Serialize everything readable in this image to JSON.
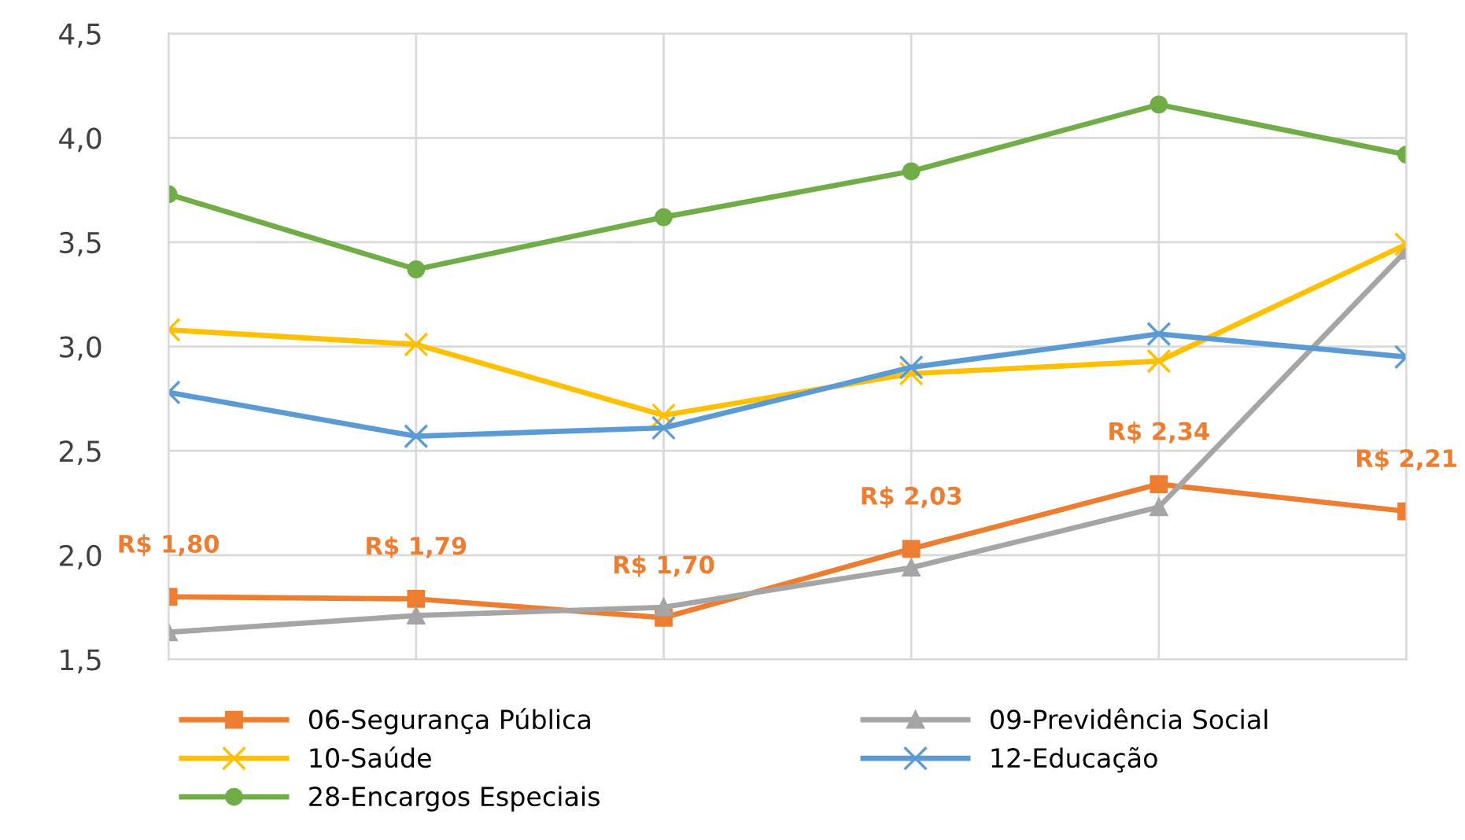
{
  "chart_data": {
    "type": "line",
    "categories": [
      null,
      null,
      null,
      null,
      null,
      null
    ],
    "ylim": [
      1.5,
      4.5
    ],
    "yticks": [
      {
        "value": 1.5,
        "label": "1,5"
      },
      {
        "value": 2.0,
        "label": "2,0"
      },
      {
        "value": 2.5,
        "label": "2,5"
      },
      {
        "value": 3.0,
        "label": "3,0"
      },
      {
        "value": 3.5,
        "label": "3,5"
      },
      {
        "value": 4.0,
        "label": "4,0"
      },
      {
        "value": 4.5,
        "label": "4,5"
      }
    ],
    "grid": true,
    "legend": "bottom",
    "series": [
      {
        "name": "06-Segurança Pública",
        "color": "#ed7d31",
        "marker": "square",
        "values": [
          1.8,
          1.79,
          1.7,
          2.03,
          2.34,
          2.21
        ],
        "value_labels": [
          "R$ 1,80",
          "R$ 1,79",
          "R$ 1,70",
          "R$ 2,03",
          "R$ 2,34",
          "R$ 2,21"
        ]
      },
      {
        "name": "09-Previdência Social",
        "color": "#a5a5a5",
        "marker": "triangle",
        "values": [
          1.63,
          1.71,
          1.75,
          1.94,
          2.23,
          3.46
        ]
      },
      {
        "name": "10-Saúde",
        "color": "#ffc000",
        "marker": "cross",
        "values": [
          3.08,
          3.01,
          2.67,
          2.87,
          2.93,
          3.49
        ]
      },
      {
        "name": "12-Educação",
        "color": "#5b9bd5",
        "marker": "cross",
        "values": [
          2.78,
          2.57,
          2.61,
          2.9,
          3.06,
          2.95
        ]
      },
      {
        "name": "28-Encargos Especiais",
        "color": "#70ad47",
        "marker": "circle",
        "values": [
          3.73,
          3.37,
          3.62,
          3.84,
          4.16,
          3.92
        ]
      }
    ]
  }
}
